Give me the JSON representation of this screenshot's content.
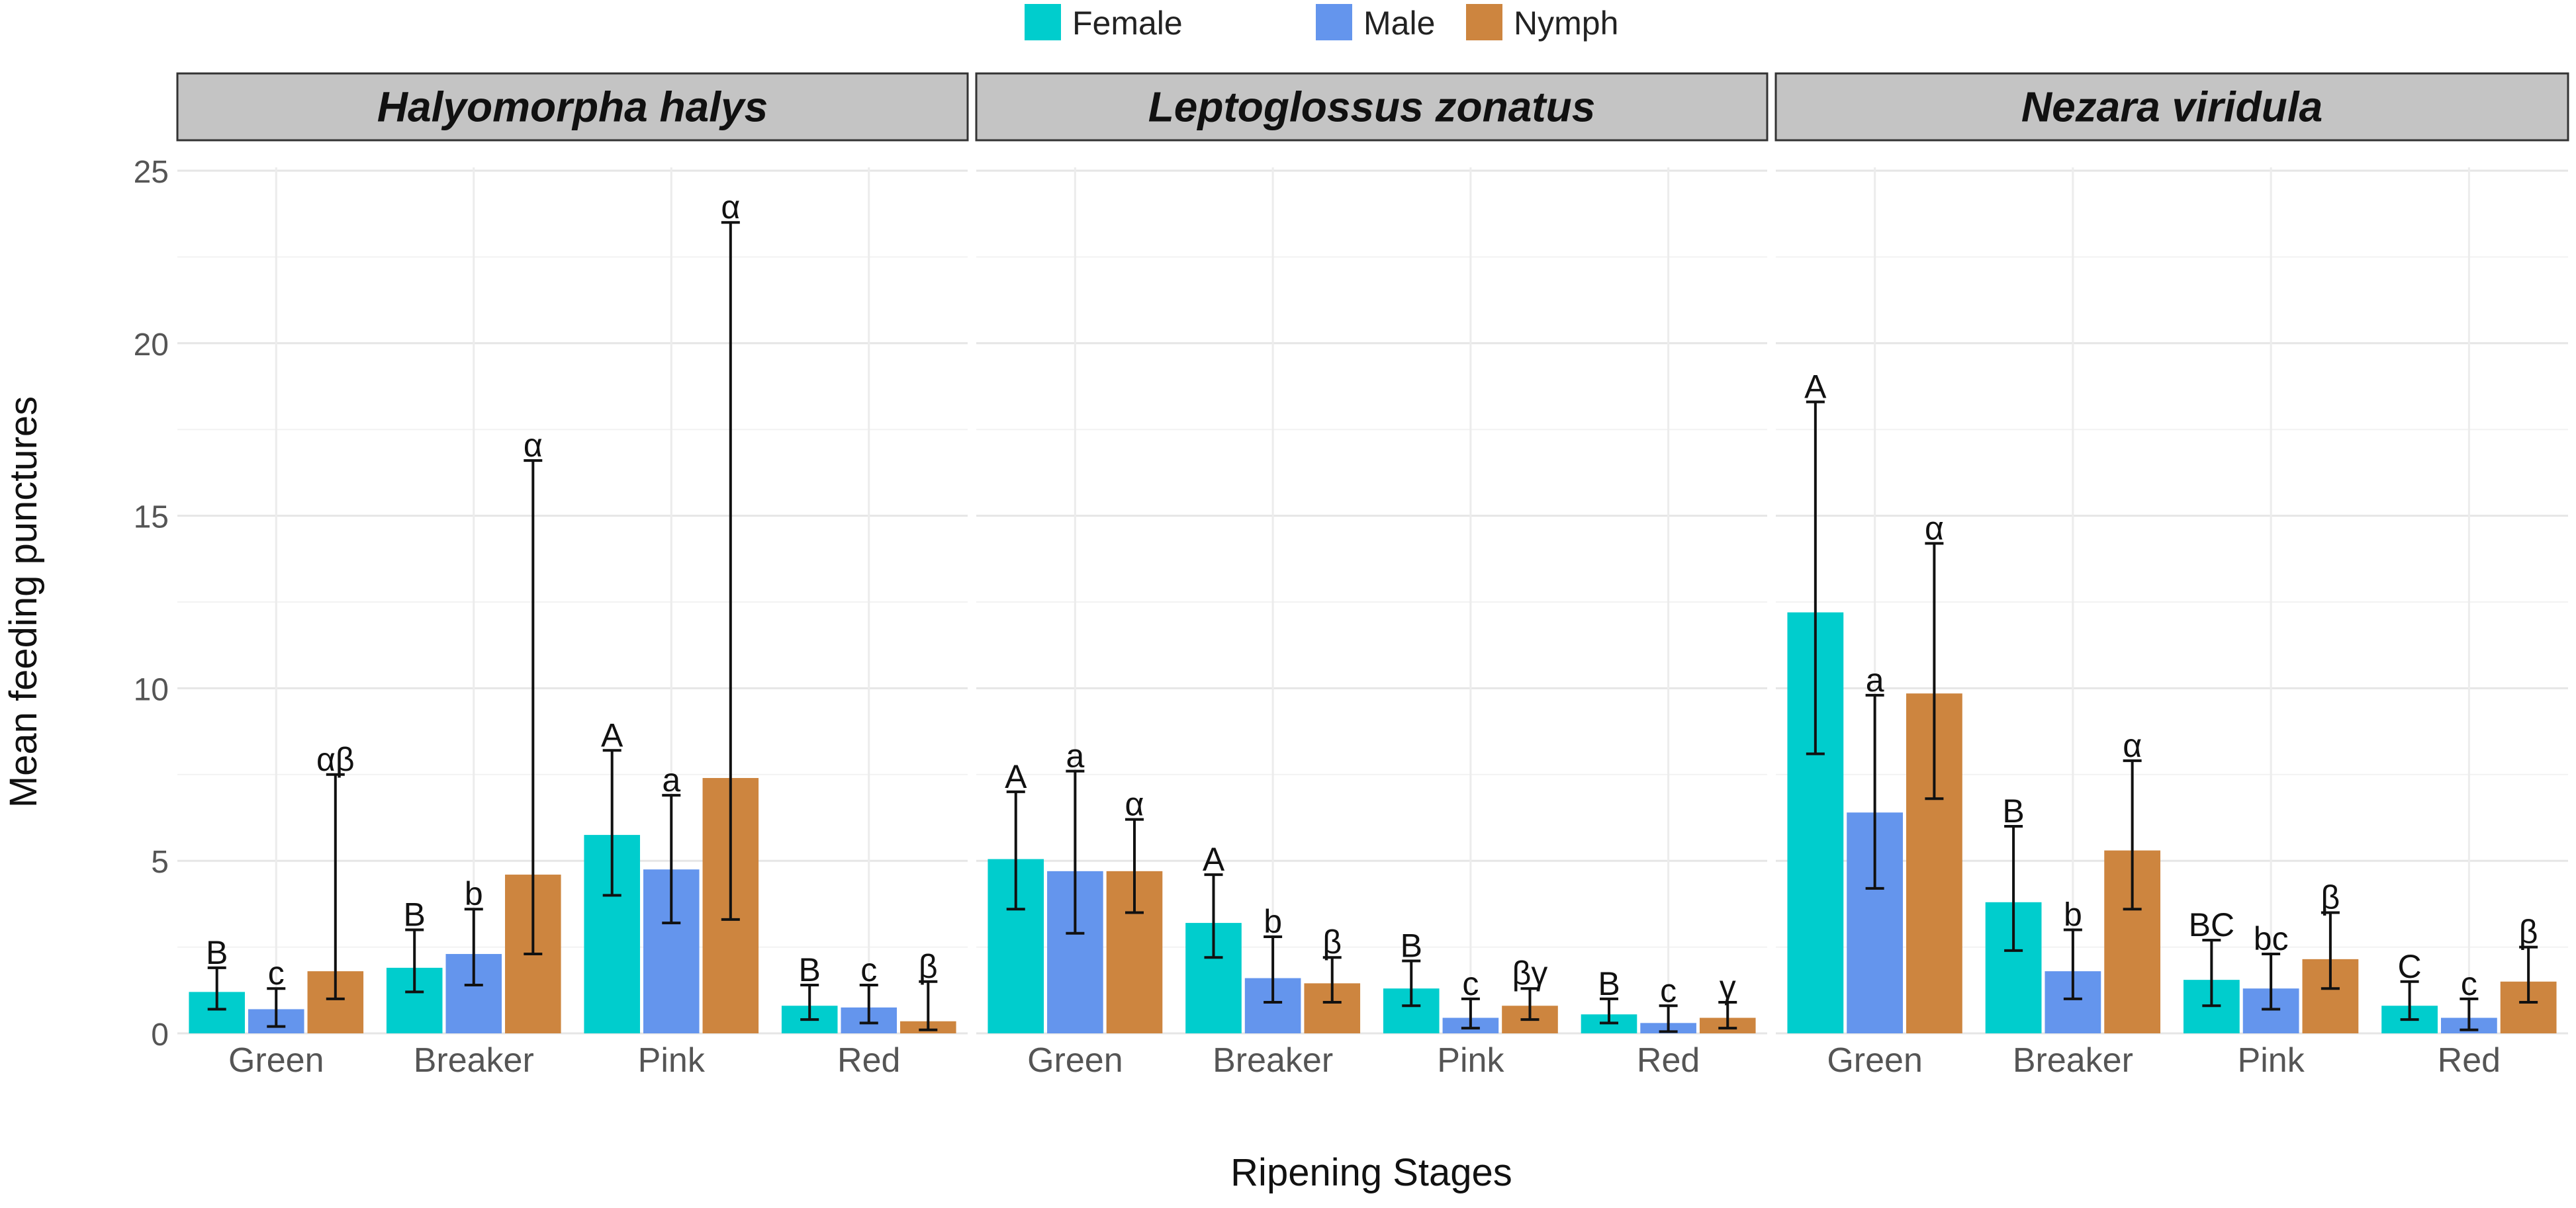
{
  "chart_data": {
    "type": "bar",
    "facets": [
      "Halyomorpha halys",
      "Leptoglossus zonatus",
      "Nezara viridula"
    ],
    "categories": [
      "Green",
      "Breaker",
      "Pink",
      "Red"
    ],
    "legend": {
      "placement": "top",
      "entries": [
        {
          "name": "Female",
          "color": "#00CDCD"
        },
        {
          "name": "Male",
          "color": "#6495ED"
        },
        {
          "name": "Nymph",
          "color": "#CD853F"
        }
      ]
    },
    "xlabel": "Ripening Stages",
    "ylabel": "Mean feeding punctures",
    "ylim": [
      0,
      25
    ],
    "yticks": [
      0,
      5,
      10,
      15,
      20,
      25
    ],
    "grid": true,
    "panels": [
      {
        "facet": "Halyomorpha halys",
        "series": [
          {
            "name": "Female",
            "values": [
              1.2,
              1.9,
              5.75,
              0.8
            ],
            "err_low": [
              0.7,
              1.2,
              4.0,
              0.4
            ],
            "err_high": [
              1.9,
              3.0,
              8.2,
              1.4
            ],
            "letters": [
              "B",
              "B",
              "A",
              "B"
            ]
          },
          {
            "name": "Male",
            "values": [
              0.7,
              2.3,
              4.75,
              0.75
            ],
            "err_low": [
              0.2,
              1.4,
              3.2,
              0.3
            ],
            "err_high": [
              1.3,
              3.6,
              6.9,
              1.4
            ],
            "letters": [
              "c",
              "b",
              "a",
              "c"
            ]
          },
          {
            "name": "Nymph",
            "values": [
              1.8,
              4.6,
              7.4,
              0.35
            ],
            "err_low": [
              1.0,
              2.3,
              3.3,
              0.1
            ],
            "err_high": [
              7.5,
              16.6,
              23.5,
              1.5
            ],
            "letters": [
              "αβ",
              "α",
              "α",
              "β"
            ]
          }
        ]
      },
      {
        "facet": "Leptoglossus zonatus",
        "series": [
          {
            "name": "Female",
            "values": [
              5.05,
              3.2,
              1.3,
              0.55
            ],
            "err_low": [
              3.6,
              2.2,
              0.8,
              0.3
            ],
            "err_high": [
              7.0,
              4.6,
              2.1,
              1.0
            ],
            "letters": [
              "A",
              "A",
              "B",
              "B"
            ]
          },
          {
            "name": "Male",
            "values": [
              4.7,
              1.6,
              0.45,
              0.3
            ],
            "err_low": [
              2.9,
              0.9,
              0.15,
              0.05
            ],
            "err_high": [
              7.6,
              2.8,
              1.0,
              0.8
            ],
            "letters": [
              "a",
              "b",
              "c",
              "c"
            ]
          },
          {
            "name": "Nymph",
            "values": [
              4.7,
              1.45,
              0.8,
              0.45
            ],
            "err_low": [
              3.5,
              0.9,
              0.4,
              0.15
            ],
            "err_high": [
              6.2,
              2.2,
              1.3,
              0.9
            ],
            "letters": [
              "α",
              "β",
              "βγ",
              "γ"
            ]
          }
        ]
      },
      {
        "facet": "Nezara viridula",
        "series": [
          {
            "name": "Female",
            "values": [
              12.2,
              3.8,
              1.55,
              0.8
            ],
            "err_low": [
              8.1,
              2.4,
              0.8,
              0.4
            ],
            "err_high": [
              18.3,
              6.0,
              2.7,
              1.5
            ],
            "letters": [
              "A",
              "B",
              "BC",
              "C"
            ]
          },
          {
            "name": "Male",
            "values": [
              6.4,
              1.8,
              1.3,
              0.45
            ],
            "err_low": [
              4.2,
              1.0,
              0.7,
              0.1
            ],
            "err_high": [
              9.8,
              3.0,
              2.3,
              1.0
            ],
            "letters": [
              "a",
              "b",
              "bc",
              "c"
            ]
          },
          {
            "name": "Nymph",
            "values": [
              9.85,
              5.3,
              2.15,
              1.5
            ],
            "err_low": [
              6.8,
              3.6,
              1.3,
              0.9
            ],
            "err_high": [
              14.2,
              7.9,
              3.5,
              2.5
            ],
            "letters": [
              "α",
              "α",
              "β",
              "β"
            ]
          }
        ]
      }
    ]
  }
}
